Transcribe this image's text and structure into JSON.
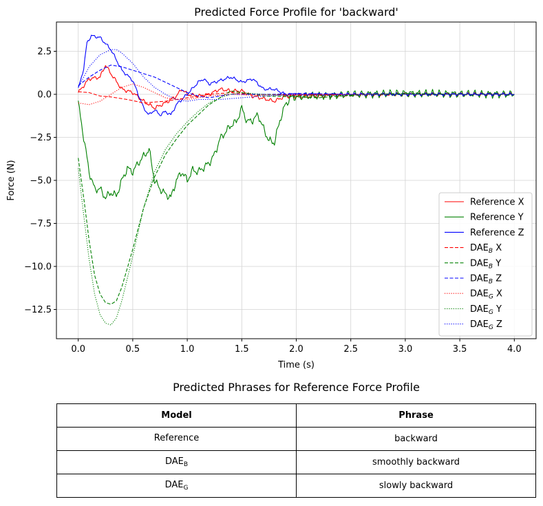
{
  "chart_data": {
    "type": "line",
    "title": "Predicted Force Profile for 'backward'",
    "xlabel": "Time (s)",
    "ylabel": "Force (N)",
    "xlim": [
      -0.2,
      4.2
    ],
    "ylim": [
      -14.2,
      4.2
    ],
    "xticks": [
      0.0,
      0.5,
      1.0,
      1.5,
      2.0,
      2.5,
      3.0,
      3.5,
      4.0
    ],
    "xtick_labels": [
      "0.0",
      "0.5",
      "1.0",
      "1.5",
      "2.0",
      "2.5",
      "3.0",
      "3.5",
      "4.0"
    ],
    "yticks": [
      2.5,
      0.0,
      -2.5,
      -5.0,
      -7.5,
      -10.0,
      -12.5
    ],
    "ytick_labels": [
      "2.5",
      "0.0",
      "−2.5",
      "−5.0",
      "−7.5",
      "−10.0",
      "−12.5"
    ],
    "grid": true,
    "legend_position": "lower-right",
    "series": [
      {
        "name": "Reference X",
        "color": "#ff0000",
        "style": "solid",
        "noise": 0.12,
        "points": [
          [
            0,
            0.1
          ],
          [
            0.1,
            0.9
          ],
          [
            0.2,
            1.0
          ],
          [
            0.25,
            1.7
          ],
          [
            0.3,
            1.2
          ],
          [
            0.4,
            0.3
          ],
          [
            0.5,
            0.1
          ],
          [
            0.6,
            -0.4
          ],
          [
            0.7,
            -0.8
          ],
          [
            0.8,
            -0.5
          ],
          [
            0.9,
            -0.1
          ],
          [
            0.95,
            0.3
          ],
          [
            1.0,
            0.0
          ],
          [
            1.1,
            -0.1
          ],
          [
            1.2,
            0.0
          ],
          [
            1.3,
            0.3
          ],
          [
            1.4,
            0.2
          ],
          [
            1.5,
            0.2
          ],
          [
            1.6,
            -0.1
          ],
          [
            1.8,
            -0.4
          ],
          [
            1.9,
            -0.1
          ],
          [
            2.0,
            -0.15
          ],
          [
            2.5,
            -0.05
          ],
          [
            3.0,
            0.0
          ],
          [
            4.0,
            0.0
          ]
        ]
      },
      {
        "name": "Reference Y",
        "color": "#008000",
        "style": "solid",
        "noise": 0.25,
        "points": [
          [
            0,
            -0.5
          ],
          [
            0.05,
            -2.5
          ],
          [
            0.1,
            -4.5
          ],
          [
            0.15,
            -5.5
          ],
          [
            0.2,
            -5.5
          ],
          [
            0.25,
            -6.0
          ],
          [
            0.3,
            -5.7
          ],
          [
            0.35,
            -5.9
          ],
          [
            0.4,
            -5.0
          ],
          [
            0.45,
            -4.3
          ],
          [
            0.5,
            -4.5
          ],
          [
            0.55,
            -4.0
          ],
          [
            0.6,
            -3.6
          ],
          [
            0.65,
            -3.2
          ],
          [
            0.7,
            -5.0
          ],
          [
            0.75,
            -5.5
          ],
          [
            0.8,
            -5.8
          ],
          [
            0.85,
            -6.0
          ],
          [
            0.9,
            -5.0
          ],
          [
            0.95,
            -4.5
          ],
          [
            1.0,
            -5.0
          ],
          [
            1.05,
            -4.4
          ],
          [
            1.1,
            -4.5
          ],
          [
            1.2,
            -4.0
          ],
          [
            1.25,
            -3.5
          ],
          [
            1.3,
            -2.6
          ],
          [
            1.4,
            -1.8
          ],
          [
            1.45,
            -1.6
          ],
          [
            1.5,
            -0.8
          ],
          [
            1.55,
            -1.6
          ],
          [
            1.6,
            -1.5
          ],
          [
            1.65,
            -1.2
          ],
          [
            1.7,
            -2.0
          ],
          [
            1.75,
            -2.7
          ],
          [
            1.8,
            -2.8
          ],
          [
            1.85,
            -1.5
          ],
          [
            1.9,
            -0.6
          ],
          [
            1.95,
            -0.2
          ],
          [
            2.0,
            -0.15
          ],
          [
            2.5,
            0.0
          ],
          [
            3.0,
            0.05
          ],
          [
            4.0,
            0.0
          ]
        ]
      },
      {
        "name": "Reference Z",
        "color": "#0000ff",
        "style": "solid",
        "noise": 0.1,
        "points": [
          [
            0,
            0.3
          ],
          [
            0.05,
            1.5
          ],
          [
            0.08,
            3.0
          ],
          [
            0.12,
            3.4
          ],
          [
            0.2,
            3.3
          ],
          [
            0.3,
            2.6
          ],
          [
            0.35,
            2.0
          ],
          [
            0.4,
            1.4
          ],
          [
            0.5,
            0.8
          ],
          [
            0.55,
            0.0
          ],
          [
            0.6,
            -0.8
          ],
          [
            0.65,
            -1.2
          ],
          [
            0.7,
            -0.9
          ],
          [
            0.75,
            -1.2
          ],
          [
            0.8,
            -1.0
          ],
          [
            0.85,
            -1.2
          ],
          [
            0.9,
            -0.6
          ],
          [
            0.95,
            -0.3
          ],
          [
            1.0,
            0.0
          ],
          [
            1.1,
            0.7
          ],
          [
            1.15,
            0.9
          ],
          [
            1.2,
            0.6
          ],
          [
            1.3,
            0.8
          ],
          [
            1.4,
            1.0
          ],
          [
            1.5,
            0.7
          ],
          [
            1.6,
            0.9
          ],
          [
            1.7,
            0.3
          ],
          [
            1.8,
            0.3
          ],
          [
            1.9,
            0.0
          ],
          [
            2.0,
            0.0
          ],
          [
            2.5,
            0.0
          ],
          [
            3.0,
            0.0
          ],
          [
            4.0,
            0.0
          ]
        ]
      },
      {
        "name": "DAE_B X",
        "color": "#ff0000",
        "style": "dashed",
        "noise": 0,
        "points": [
          [
            0,
            0.15
          ],
          [
            0.1,
            0.1
          ],
          [
            0.2,
            -0.1
          ],
          [
            0.3,
            -0.15
          ],
          [
            0.45,
            -0.3
          ],
          [
            0.6,
            -0.5
          ],
          [
            0.8,
            -0.4
          ],
          [
            1.0,
            -0.2
          ],
          [
            1.2,
            0.0
          ],
          [
            1.4,
            0.1
          ],
          [
            1.6,
            0.0
          ],
          [
            2.0,
            -0.05
          ],
          [
            2.5,
            0.0
          ],
          [
            4.0,
            0.0
          ]
        ]
      },
      {
        "name": "DAE_B Y",
        "color": "#008000",
        "style": "dashed",
        "noise": 0,
        "points": [
          [
            0,
            -3.7
          ],
          [
            0.05,
            -6.0
          ],
          [
            0.1,
            -8.5
          ],
          [
            0.15,
            -10.5
          ],
          [
            0.2,
            -11.6
          ],
          [
            0.25,
            -12.1
          ],
          [
            0.3,
            -12.2
          ],
          [
            0.35,
            -12.0
          ],
          [
            0.4,
            -11.2
          ],
          [
            0.5,
            -9.0
          ],
          [
            0.6,
            -6.6
          ],
          [
            0.7,
            -4.8
          ],
          [
            0.8,
            -3.5
          ],
          [
            0.9,
            -2.6
          ],
          [
            1.0,
            -1.8
          ],
          [
            1.1,
            -1.2
          ],
          [
            1.2,
            -0.6
          ],
          [
            1.3,
            -0.2
          ],
          [
            1.4,
            0.2
          ],
          [
            1.5,
            0.1
          ],
          [
            1.7,
            -0.1
          ],
          [
            2.0,
            -0.15
          ],
          [
            2.2,
            -0.2
          ],
          [
            2.4,
            -0.1
          ],
          [
            2.6,
            0.0
          ],
          [
            3.0,
            0.05
          ],
          [
            3.5,
            0.0
          ],
          [
            4.0,
            0.0
          ]
        ]
      },
      {
        "name": "DAE_B Z",
        "color": "#0000ff",
        "style": "dashed",
        "noise": 0,
        "points": [
          [
            0,
            0.5
          ],
          [
            0.1,
            1.0
          ],
          [
            0.2,
            1.4
          ],
          [
            0.3,
            1.7
          ],
          [
            0.4,
            1.6
          ],
          [
            0.5,
            1.4
          ],
          [
            0.6,
            1.2
          ],
          [
            0.7,
            1.0
          ],
          [
            0.8,
            0.7
          ],
          [
            0.9,
            0.4
          ],
          [
            1.0,
            0.1
          ],
          [
            1.1,
            -0.1
          ],
          [
            1.2,
            -0.2
          ],
          [
            1.4,
            0.0
          ],
          [
            1.6,
            0.0
          ],
          [
            1.8,
            0.0
          ],
          [
            2.0,
            0.05
          ],
          [
            2.5,
            0.0
          ],
          [
            3.0,
            0.0
          ],
          [
            3.5,
            0.0
          ],
          [
            4.0,
            0.0
          ]
        ]
      },
      {
        "name": "DAE_G X",
        "color": "#ff0000",
        "style": "dotted",
        "noise": 0,
        "points": [
          [
            0,
            -0.5
          ],
          [
            0.1,
            -0.6
          ],
          [
            0.2,
            -0.4
          ],
          [
            0.3,
            0.0
          ],
          [
            0.4,
            0.4
          ],
          [
            0.5,
            0.6
          ],
          [
            0.6,
            0.4
          ],
          [
            0.7,
            0.1
          ],
          [
            0.8,
            -0.2
          ],
          [
            0.9,
            -0.3
          ],
          [
            1.0,
            -0.3
          ],
          [
            1.2,
            -0.1
          ],
          [
            1.4,
            0.0
          ],
          [
            1.6,
            -0.05
          ],
          [
            2.0,
            0.0
          ],
          [
            2.5,
            0.0
          ],
          [
            4.0,
            0.0
          ]
        ]
      },
      {
        "name": "DAE_G Y",
        "color": "#008000",
        "style": "dotted",
        "noise": 0,
        "points": [
          [
            0,
            -4.3
          ],
          [
            0.05,
            -7.0
          ],
          [
            0.1,
            -9.6
          ],
          [
            0.15,
            -11.6
          ],
          [
            0.2,
            -12.8
          ],
          [
            0.25,
            -13.3
          ],
          [
            0.3,
            -13.4
          ],
          [
            0.35,
            -13.0
          ],
          [
            0.4,
            -12.0
          ],
          [
            0.5,
            -9.4
          ],
          [
            0.6,
            -6.6
          ],
          [
            0.7,
            -4.5
          ],
          [
            0.8,
            -3.2
          ],
          [
            0.9,
            -2.3
          ],
          [
            1.0,
            -1.6
          ],
          [
            1.1,
            -1.0
          ],
          [
            1.2,
            -0.5
          ],
          [
            1.3,
            -0.2
          ],
          [
            1.4,
            0.0
          ],
          [
            1.5,
            0.1
          ],
          [
            1.7,
            0.0
          ],
          [
            2.0,
            -0.1
          ],
          [
            2.5,
            -0.05
          ],
          [
            3.0,
            0.0
          ],
          [
            4.0,
            0.0
          ]
        ]
      },
      {
        "name": "DAE_G Z",
        "color": "#0000ff",
        "style": "dotted",
        "noise": 0,
        "points": [
          [
            0,
            0.4
          ],
          [
            0.1,
            1.6
          ],
          [
            0.2,
            2.3
          ],
          [
            0.3,
            2.6
          ],
          [
            0.35,
            2.6
          ],
          [
            0.4,
            2.4
          ],
          [
            0.5,
            1.8
          ],
          [
            0.6,
            1.0
          ],
          [
            0.7,
            0.4
          ],
          [
            0.8,
            0.0
          ],
          [
            0.9,
            -0.3
          ],
          [
            1.0,
            -0.4
          ],
          [
            1.1,
            -0.3
          ],
          [
            1.3,
            -0.3
          ],
          [
            1.5,
            -0.2
          ],
          [
            1.7,
            -0.1
          ],
          [
            2.0,
            0.0
          ],
          [
            2.5,
            0.0
          ],
          [
            4.0,
            0.0
          ]
        ]
      }
    ],
    "legend": [
      {
        "base": "Reference X",
        "sub": "",
        "suffix": ""
      },
      {
        "base": "Reference Y",
        "sub": "",
        "suffix": ""
      },
      {
        "base": "Reference Z",
        "sub": "",
        "suffix": ""
      },
      {
        "base": "DAE",
        "sub": "B",
        "suffix": " X"
      },
      {
        "base": "DAE",
        "sub": "B",
        "suffix": " Y"
      },
      {
        "base": "DAE",
        "sub": "B",
        "suffix": " Z"
      },
      {
        "base": "DAE",
        "sub": "G",
        "suffix": " X"
      },
      {
        "base": "DAE",
        "sub": "G",
        "suffix": " Y"
      },
      {
        "base": "DAE",
        "sub": "G",
        "suffix": " Z"
      }
    ]
  },
  "table": {
    "title": "Predicted Phrases for Reference Force Profile",
    "headers": [
      "Model",
      "Phrase"
    ],
    "rows": [
      {
        "model": "Reference",
        "model_sub": "",
        "phrase": "backward"
      },
      {
        "model": "DAE",
        "model_sub": "B",
        "phrase": "smoothly backward"
      },
      {
        "model": "DAE",
        "model_sub": "G",
        "phrase": "slowly  backward"
      }
    ]
  }
}
